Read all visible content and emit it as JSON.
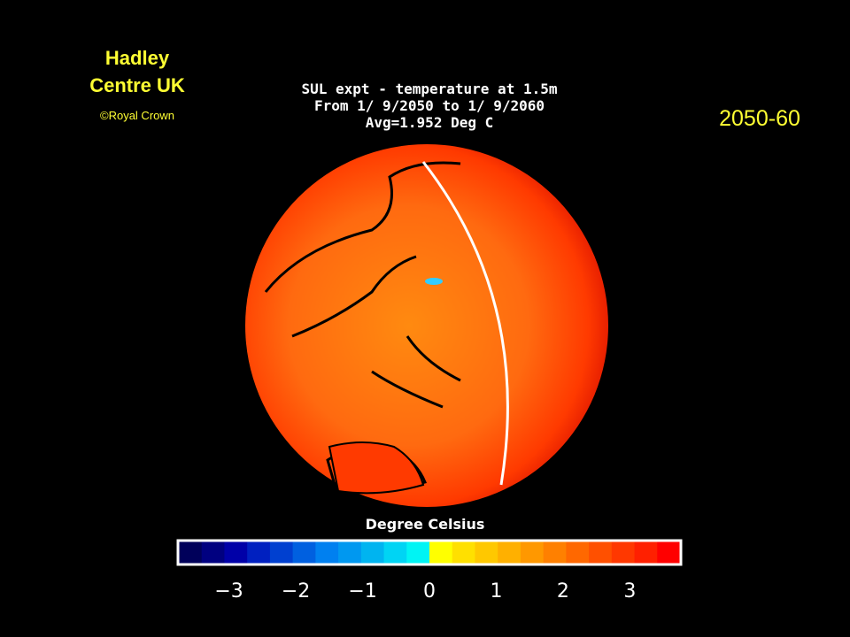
{
  "header": {
    "title_lines": [
      "Hadley",
      "Centre UK"
    ],
    "credit": "©Royal Crown",
    "period": "2050-60"
  },
  "map": {
    "title_lines": [
      "SUL expt - temperature at 1.5m",
      "From 1/ 9/2050 to 1/ 9/2060",
      "Avg=1.952 Deg C"
    ]
  },
  "colorbar": {
    "label": "Degree Celsius",
    "lim": [
      -3.75,
      3.75
    ],
    "ticks": [
      {
        "value": -3,
        "label": "−3"
      },
      {
        "value": -2,
        "label": "−2"
      },
      {
        "value": -1,
        "label": "−1"
      },
      0,
      1,
      2,
      3
    ],
    "colors": [
      "#00005a",
      "#000080",
      "#0000a8",
      "#0020c0",
      "#0040d0",
      "#0060e0",
      "#0080f0",
      "#0098f0",
      "#00b4f0",
      "#00d4f4",
      "#00f4f4",
      "#ffff00",
      "#ffe000",
      "#ffc800",
      "#ffb000",
      "#ff9800",
      "#ff8000",
      "#ff6800",
      "#ff5000",
      "#ff3800",
      "#ff2000",
      "#ff0000"
    ]
  }
}
